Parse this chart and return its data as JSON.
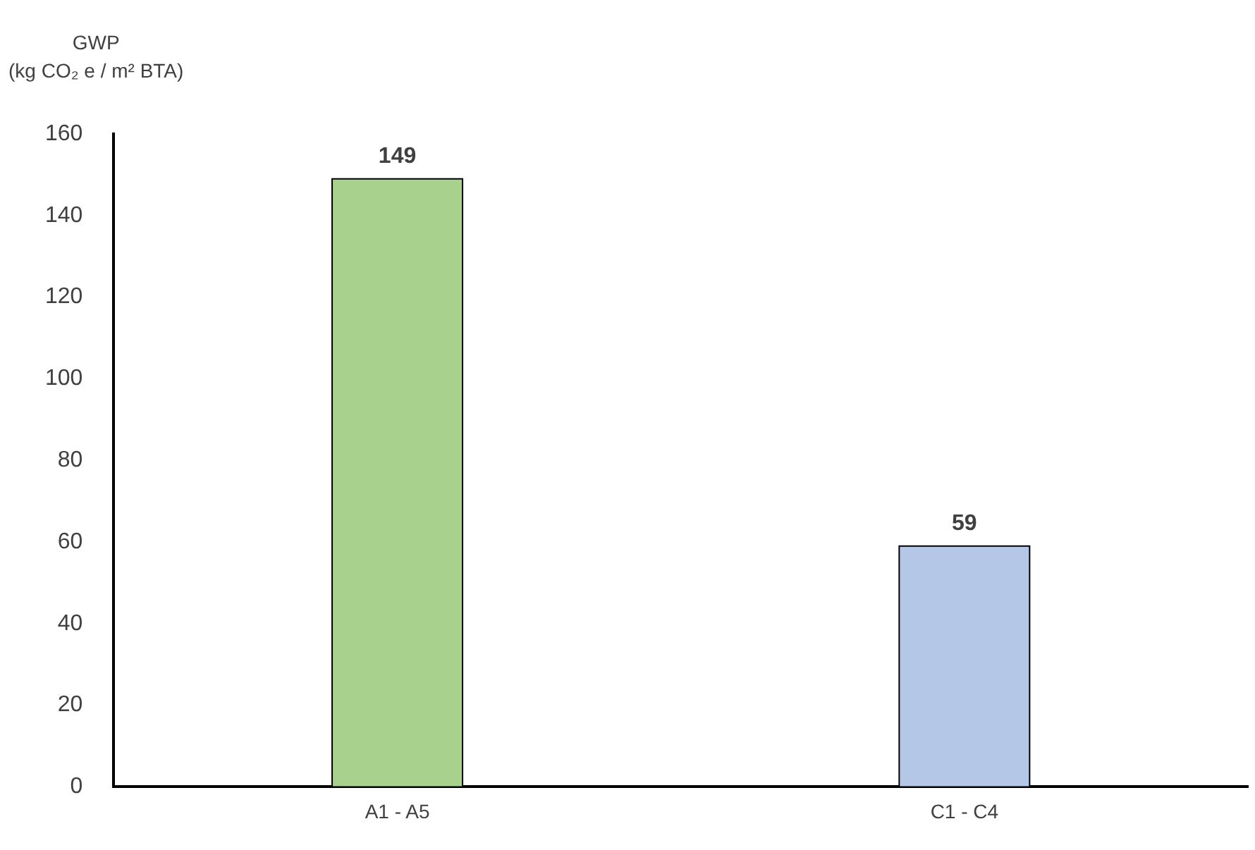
{
  "chart_data": {
    "type": "bar",
    "ylabel": "GWP\n(kg CO₂ e / m² BTA)",
    "categories": [
      "A1 - A5",
      "C1 - C4"
    ],
    "values": [
      149,
      59
    ],
    "colors": [
      "#a9d18e",
      "#b4c7e7"
    ],
    "ylim": [
      0,
      160
    ],
    "yticks": [
      0,
      20,
      40,
      60,
      80,
      100,
      120,
      140,
      160
    ],
    "grid": false,
    "legend": false,
    "data_labels": true
  }
}
